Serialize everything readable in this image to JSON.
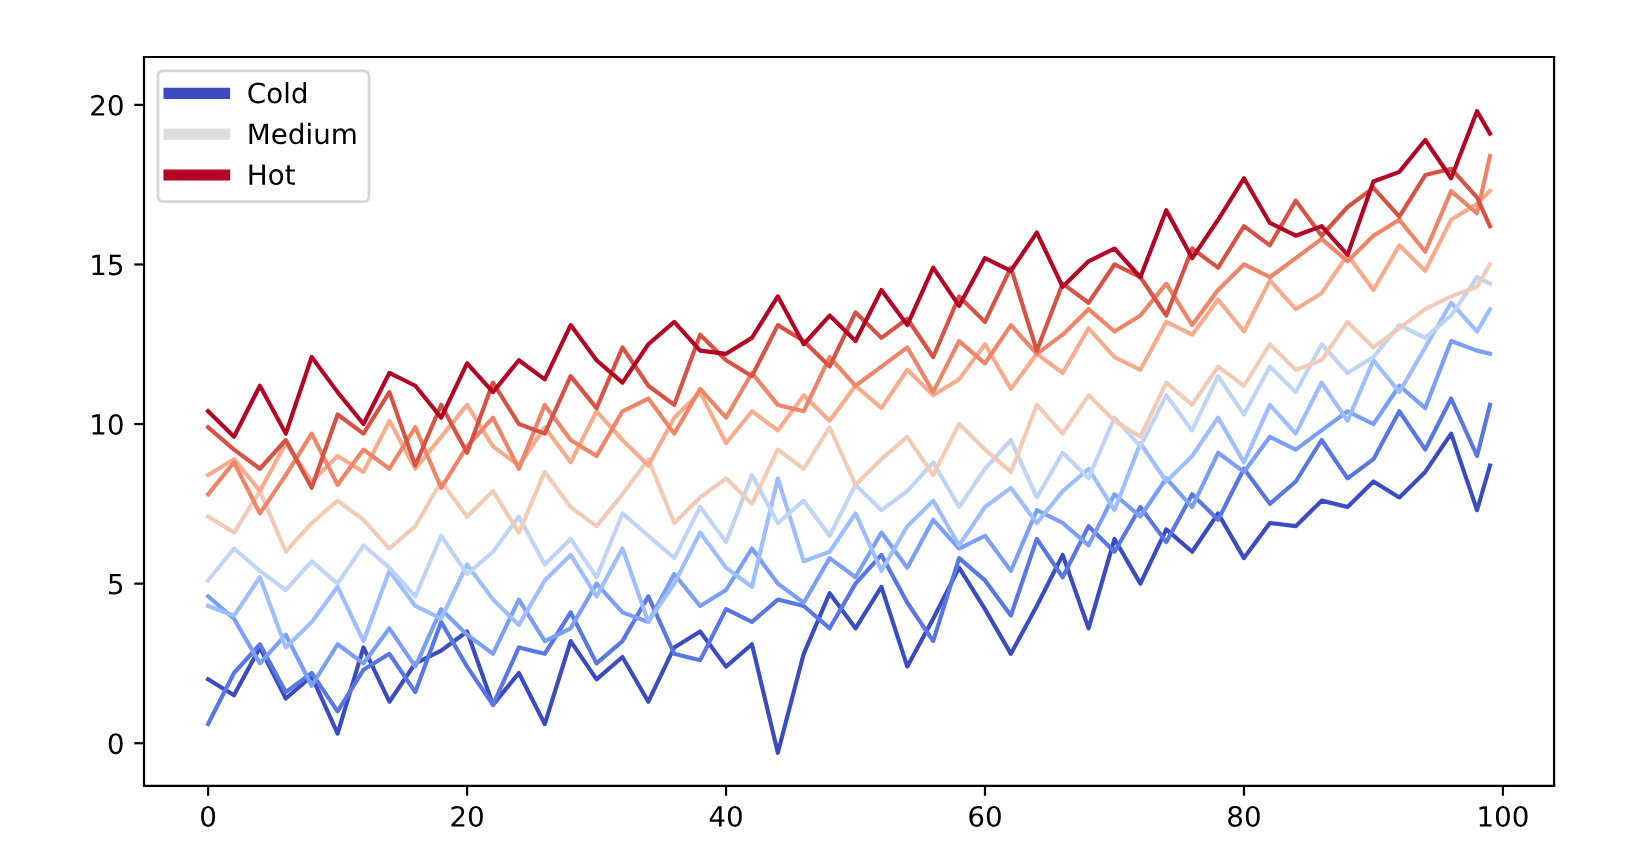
{
  "chart_data": {
    "type": "line",
    "x": [
      0,
      2,
      4,
      6,
      8,
      10,
      12,
      14,
      16,
      18,
      20,
      22,
      24,
      26,
      28,
      30,
      32,
      34,
      36,
      38,
      40,
      42,
      44,
      46,
      48,
      50,
      52,
      54,
      56,
      58,
      60,
      62,
      64,
      66,
      68,
      70,
      72,
      74,
      76,
      78,
      80,
      82,
      84,
      86,
      88,
      90,
      92,
      94,
      96,
      98,
      99
    ],
    "xlim": [
      -4.95,
      103.95
    ],
    "ylim": [
      -1.34,
      21.5
    ],
    "xticks": [
      0,
      20,
      40,
      60,
      80,
      100
    ],
    "yticks": [
      0,
      5,
      10,
      15,
      20
    ],
    "grid": false,
    "legend": "top left",
    "series": [
      {
        "name": "Cold",
        "color": "#3b4cc0",
        "values": [
          2.0,
          1.5,
          3.0,
          1.4,
          2.1,
          0.3,
          3.0,
          1.3,
          2.5,
          2.9,
          3.5,
          1.2,
          2.2,
          0.6,
          3.2,
          2.0,
          2.7,
          1.3,
          3.0,
          3.5,
          2.4,
          3.1,
          -0.3,
          2.8,
          4.7,
          3.6,
          4.9,
          2.4,
          3.9,
          5.5,
          4.2,
          2.8,
          4.3,
          5.9,
          3.6,
          6.4,
          5.0,
          6.7,
          6.0,
          7.2,
          5.8,
          6.9,
          6.8,
          7.6,
          7.4,
          8.2,
          7.7,
          8.5,
          9.7,
          7.3,
          8.7
        ]
      },
      {
        "color": "#5977e3",
        "values": [
          0.6,
          2.2,
          3.1,
          1.6,
          2.2,
          1.0,
          2.3,
          2.8,
          1.6,
          3.8,
          2.4,
          1.2,
          3.0,
          2.8,
          4.1,
          2.5,
          3.2,
          4.6,
          2.8,
          2.6,
          4.2,
          3.8,
          4.5,
          4.3,
          3.6,
          5.0,
          5.9,
          4.4,
          3.2,
          5.8,
          5.1,
          4.0,
          6.4,
          5.2,
          6.8,
          6.0,
          7.4,
          6.3,
          7.8,
          7.0,
          8.6,
          7.5,
          8.2,
          9.5,
          8.3,
          8.9,
          10.4,
          9.2,
          10.8,
          9.0,
          10.6
        ]
      },
      {
        "color": "#7b9ff9",
        "values": [
          4.6,
          3.9,
          2.5,
          3.4,
          1.8,
          3.1,
          2.5,
          3.6,
          2.4,
          4.2,
          3.4,
          2.8,
          4.5,
          3.2,
          3.6,
          5.0,
          4.1,
          3.8,
          5.3,
          4.3,
          4.8,
          6.1,
          5.0,
          4.4,
          5.8,
          5.2,
          6.6,
          5.5,
          7.0,
          6.1,
          6.5,
          5.4,
          7.3,
          6.9,
          6.2,
          7.8,
          7.1,
          8.3,
          7.4,
          9.1,
          8.5,
          9.6,
          9.2,
          9.8,
          10.4,
          10.0,
          11.2,
          10.5,
          12.6,
          12.3,
          12.2
        ]
      },
      {
        "color": "#9ebeff",
        "values": [
          4.3,
          4.0,
          5.2,
          3.0,
          3.8,
          4.9,
          3.2,
          5.4,
          4.3,
          3.9,
          5.6,
          4.5,
          3.7,
          5.1,
          5.9,
          4.6,
          6.1,
          3.8,
          5.0,
          6.6,
          5.5,
          4.9,
          8.3,
          5.7,
          6.0,
          7.2,
          5.4,
          6.8,
          7.6,
          6.2,
          7.4,
          8.0,
          6.9,
          7.9,
          8.6,
          7.3,
          9.4,
          8.2,
          9.0,
          10.2,
          8.8,
          10.6,
          9.7,
          11.3,
          10.1,
          12.0,
          11.0,
          12.4,
          13.8,
          12.9,
          13.6
        ]
      },
      {
        "color": "#c0d4f5",
        "values": [
          5.1,
          6.1,
          5.4,
          4.8,
          5.7,
          5.0,
          6.2,
          5.5,
          4.6,
          6.5,
          5.3,
          6.0,
          7.1,
          5.6,
          6.4,
          5.2,
          7.2,
          6.5,
          5.8,
          7.4,
          6.3,
          8.4,
          6.9,
          7.6,
          6.5,
          8.1,
          7.3,
          7.9,
          8.8,
          7.4,
          8.6,
          9.5,
          7.7,
          9.1,
          8.3,
          10.2,
          9.3,
          10.9,
          9.8,
          11.5,
          10.3,
          11.8,
          11.0,
          12.5,
          11.6,
          12.1,
          13.1,
          12.7,
          13.4,
          14.6,
          14.4
        ]
      },
      {
        "name": "Medium",
        "color": "#dddddd",
        "values": [
          null,
          null,
          null,
          null,
          null,
          null,
          null,
          null,
          null,
          null,
          null,
          null,
          null,
          null,
          null,
          null,
          null,
          null,
          null,
          null,
          null,
          null,
          null,
          null,
          null,
          null,
          null,
          null,
          null,
          null,
          null,
          null,
          null,
          null,
          null,
          null,
          null,
          null,
          null,
          null,
          null,
          null,
          null,
          null,
          null,
          null,
          null,
          null,
          null,
          null,
          null
        ]
      },
      {
        "color": "#f2cbb7",
        "values": [
          7.1,
          6.6,
          7.9,
          6.0,
          6.9,
          7.6,
          7.0,
          6.1,
          6.8,
          8.2,
          7.1,
          7.9,
          6.6,
          8.5,
          7.4,
          6.8,
          7.8,
          8.9,
          6.9,
          7.7,
          8.3,
          7.5,
          9.2,
          8.6,
          9.9,
          8.1,
          8.9,
          9.6,
          8.4,
          10.0,
          9.2,
          8.5,
          10.6,
          9.7,
          10.9,
          10.1,
          9.6,
          11.3,
          10.6,
          11.8,
          11.2,
          12.5,
          11.7,
          12.0,
          13.2,
          12.4,
          13.0,
          13.6,
          14.0,
          14.3,
          15.0
        ]
      },
      {
        "color": "#f7ac8e",
        "values": [
          8.4,
          8.9,
          7.9,
          9.4,
          8.2,
          9.0,
          8.5,
          10.1,
          8.6,
          9.6,
          10.6,
          9.3,
          8.7,
          9.9,
          8.8,
          10.4,
          9.5,
          8.7,
          10.2,
          11.0,
          9.4,
          10.4,
          9.8,
          10.9,
          10.1,
          11.2,
          10.5,
          11.7,
          10.9,
          11.4,
          12.5,
          11.1,
          12.2,
          11.6,
          13.0,
          12.1,
          11.7,
          13.2,
          12.8,
          13.9,
          12.9,
          14.5,
          13.6,
          14.1,
          15.3,
          14.2,
          15.6,
          14.8,
          16.4,
          16.9,
          17.3
        ]
      },
      {
        "color": "#ee8468",
        "values": [
          7.8,
          8.8,
          7.2,
          8.4,
          9.7,
          8.1,
          9.2,
          8.6,
          9.9,
          8.0,
          9.3,
          10.2,
          8.6,
          10.6,
          9.5,
          9.0,
          10.4,
          10.8,
          9.7,
          11.1,
          10.2,
          11.6,
          10.6,
          10.4,
          12.1,
          11.2,
          11.8,
          12.4,
          11.0,
          12.6,
          11.9,
          13.1,
          12.2,
          12.8,
          13.6,
          12.9,
          13.4,
          14.4,
          13.1,
          14.2,
          15.0,
          14.6,
          15.2,
          15.8,
          15.1,
          15.9,
          16.4,
          15.4,
          17.3,
          16.6,
          18.4
        ]
      },
      {
        "color": "#d65244",
        "values": [
          9.9,
          9.2,
          8.6,
          9.5,
          8.0,
          10.3,
          9.7,
          11.0,
          8.7,
          10.6,
          9.1,
          11.3,
          10.0,
          9.7,
          11.5,
          10.5,
          12.4,
          11.2,
          10.6,
          12.8,
          12.0,
          11.5,
          13.1,
          12.6,
          11.8,
          13.5,
          12.7,
          13.3,
          12.1,
          14.0,
          13.2,
          14.9,
          12.3,
          14.4,
          13.8,
          15.0,
          14.6,
          13.4,
          15.5,
          14.9,
          16.2,
          15.6,
          17.0,
          15.9,
          16.8,
          17.4,
          16.5,
          17.8,
          18.0,
          17.1,
          16.2
        ]
      },
      {
        "name": "Hot",
        "color": "#b40426",
        "values": [
          10.4,
          9.6,
          11.2,
          9.7,
          12.1,
          11.0,
          10.0,
          11.6,
          11.2,
          10.2,
          11.9,
          11.0,
          12.0,
          11.4,
          13.1,
          12.0,
          11.3,
          12.5,
          13.2,
          12.3,
          12.2,
          12.7,
          14.0,
          12.5,
          13.4,
          12.6,
          14.2,
          13.1,
          14.9,
          13.7,
          15.2,
          14.8,
          16.0,
          14.3,
          15.1,
          15.5,
          14.6,
          16.7,
          15.2,
          16.4,
          17.7,
          16.3,
          15.9,
          16.2,
          15.3,
          17.6,
          17.9,
          18.9,
          17.7,
          19.8,
          19.1
        ]
      }
    ]
  }
}
